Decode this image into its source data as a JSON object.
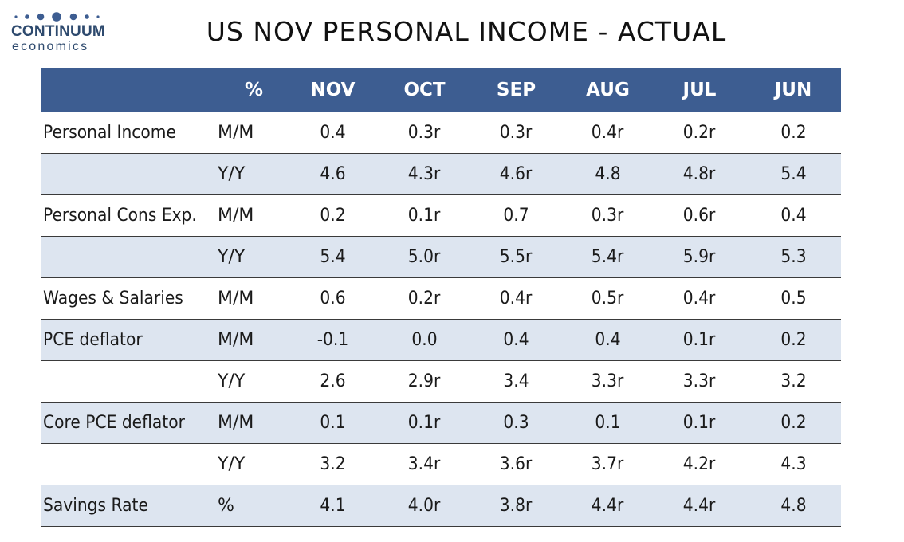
{
  "logo": {
    "name": "CONTINUUM",
    "sub": "economics"
  },
  "chart_data": {
    "type": "table",
    "title": "US NOV PERSONAL INCOME - ACTUAL",
    "columns": [
      "%",
      "NOV",
      "OCT",
      "SEP",
      "AUG",
      "JUL",
      "JUN"
    ],
    "rows": [
      {
        "label": "Personal Income",
        "unit": "M/M",
        "values": [
          "0.4",
          "0.3r",
          "0.3r",
          "0.4r",
          "0.2r",
          "0.2"
        ]
      },
      {
        "label": "",
        "unit": "Y/Y",
        "values": [
          "4.6",
          "4.3r",
          "4.6r",
          "4.8",
          "4.8r",
          "5.4"
        ]
      },
      {
        "label": "Personal Cons Exp.",
        "unit": "M/M",
        "values": [
          "0.2",
          "0.1r",
          "0.7",
          "0.3r",
          "0.6r",
          "0.4"
        ]
      },
      {
        "label": "",
        "unit": "Y/Y",
        "values": [
          "5.4",
          "5.0r",
          "5.5r",
          "5.4r",
          "5.9r",
          "5.3"
        ]
      },
      {
        "label": "Wages & Salaries",
        "unit": "M/M",
        "values": [
          "0.6",
          "0.2r",
          "0.4r",
          "0.5r",
          "0.4r",
          "0.5"
        ]
      },
      {
        "label": "PCE deflator",
        "unit": "M/M",
        "values": [
          "-0.1",
          "0.0",
          "0.4",
          "0.4",
          "0.1r",
          "0.2"
        ]
      },
      {
        "label": "",
        "unit": "Y/Y",
        "values": [
          "2.6",
          "2.9r",
          "3.4",
          "3.3r",
          "3.3r",
          "3.2"
        ]
      },
      {
        "label": "Core PCE deflator",
        "unit": "M/M",
        "values": [
          "0.1",
          "0.1r",
          "0.3",
          "0.1",
          "0.1r",
          "0.2"
        ]
      },
      {
        "label": "",
        "unit": "Y/Y",
        "values": [
          "3.2",
          "3.4r",
          "3.6r",
          "3.7r",
          "4.2r",
          "4.3"
        ]
      },
      {
        "label": "Savings Rate",
        "unit": "%",
        "values": [
          "4.1",
          "4.0r",
          "3.8r",
          "4.4r",
          "4.4r",
          "4.8"
        ]
      }
    ],
    "colors": {
      "header_bg": "#3d5d91",
      "header_text": "#ffffff",
      "band": "#dde5f0",
      "rule": "#3a3a3a"
    }
  }
}
